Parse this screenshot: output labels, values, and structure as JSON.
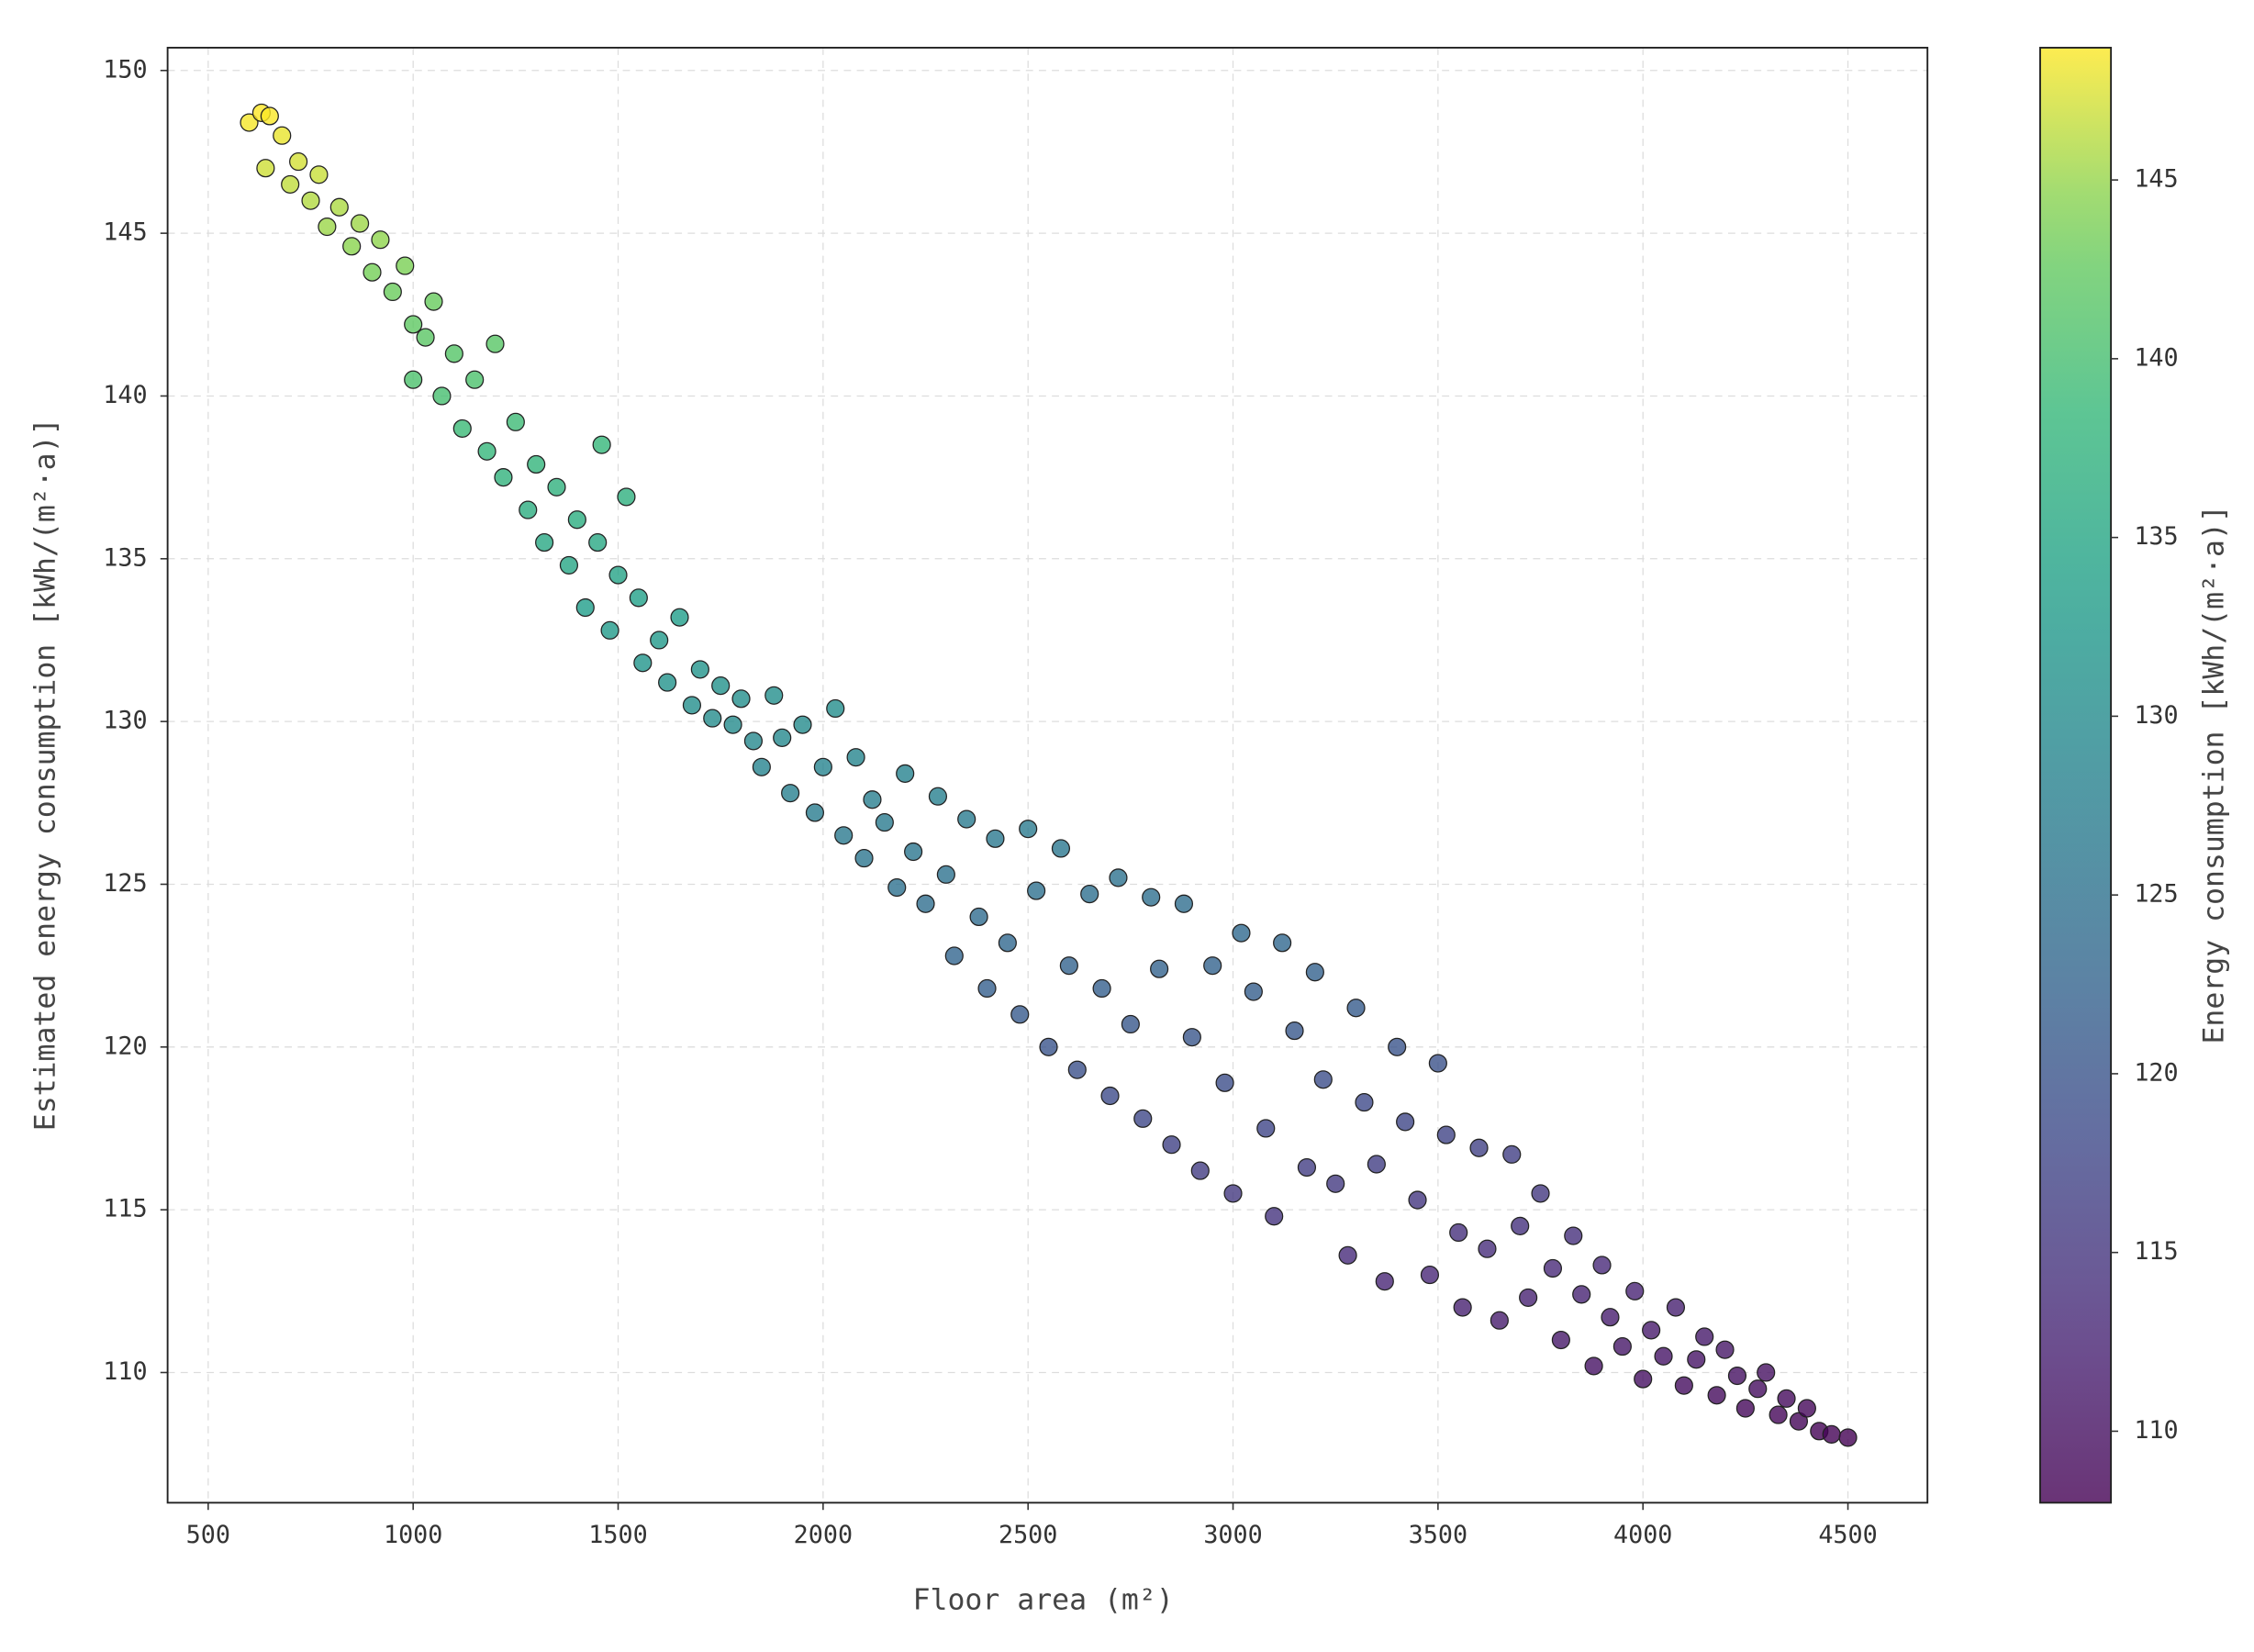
{
  "chart_data": {
    "type": "scatter",
    "xlabel": "Floor area (m²)",
    "ylabel": "Estimated energy consumption [kWh/(m²·a)]",
    "x": [
      600,
      630,
      650,
      640,
      680,
      700,
      720,
      750,
      770,
      790,
      820,
      850,
      870,
      900,
      920,
      950,
      980,
      1000,
      1000,
      1030,
      1050,
      1070,
      1100,
      1120,
      1150,
      1180,
      1200,
      1220,
      1250,
      1280,
      1300,
      1320,
      1350,
      1380,
      1400,
      1420,
      1450,
      1460,
      1480,
      1500,
      1520,
      1550,
      1560,
      1600,
      1620,
      1650,
      1680,
      1700,
      1730,
      1750,
      1780,
      1800,
      1830,
      1850,
      1880,
      1900,
      1920,
      1950,
      1980,
      2000,
      2030,
      2050,
      2080,
      2100,
      2120,
      2150,
      2180,
      2200,
      2220,
      2250,
      2280,
      2300,
      2320,
      2350,
      2380,
      2400,
      2420,
      2450,
      2480,
      2500,
      2520,
      2550,
      2580,
      2600,
      2620,
      2650,
      2680,
      2700,
      2720,
      2750,
      2780,
      2800,
      2820,
      2850,
      2880,
      2900,
      2920,
      2950,
      2980,
      3000,
      3020,
      3050,
      3080,
      3100,
      3120,
      3150,
      3180,
      3200,
      3220,
      3250,
      3280,
      3300,
      3320,
      3350,
      3370,
      3400,
      3420,
      3450,
      3480,
      3500,
      3520,
      3550,
      3560,
      3600,
      3620,
      3650,
      3680,
      3700,
      3720,
      3750,
      3780,
      3800,
      3830,
      3850,
      3880,
      3900,
      3920,
      3950,
      3980,
      4000,
      4020,
      4050,
      4080,
      4100,
      4130,
      4150,
      4180,
      4200,
      4230,
      4250,
      4280,
      4300,
      4330,
      4350,
      4380,
      4400,
      4430,
      4460,
      4500
    ],
    "y": [
      148.4,
      148.7,
      148.6,
      147,
      148,
      146.5,
      147.2,
      146,
      146.8,
      145.2,
      145.8,
      144.6,
      145.3,
      143.8,
      144.8,
      143.2,
      144,
      142.2,
      140.5,
      141.8,
      142.9,
      140,
      141.3,
      139,
      140.5,
      138.3,
      141.6,
      137.5,
      139.2,
      136.5,
      137.9,
      135.5,
      137.2,
      134.8,
      136.2,
      133.5,
      135.5,
      138.5,
      132.8,
      134.5,
      136.9,
      133.8,
      131.8,
      132.5,
      131.2,
      133.2,
      130.5,
      131.6,
      130.1,
      131.1,
      129.9,
      130.7,
      129.4,
      128.6,
      130.8,
      129.5,
      127.8,
      129.9,
      127.2,
      128.6,
      130.4,
      126.5,
      128.9,
      125.8,
      127.6,
      126.9,
      124.9,
      128.4,
      126,
      124.4,
      127.7,
      125.3,
      122.8,
      127,
      124,
      121.8,
      126.4,
      123.2,
      121,
      126.7,
      124.8,
      120,
      126.1,
      122.5,
      119.3,
      124.7,
      121.8,
      118.5,
      125.2,
      120.7,
      117.8,
      124.6,
      122.4,
      117,
      124.4,
      120.3,
      116.2,
      122.5,
      118.9,
      115.5,
      123.5,
      121.7,
      117.5,
      114.8,
      123.2,
      120.5,
      116.3,
      122.3,
      119,
      115.8,
      113.6,
      121.2,
      118.3,
      116.4,
      112.8,
      120,
      117.7,
      115.3,
      113,
      119.5,
      117.3,
      114.3,
      112,
      116.9,
      113.8,
      111.6,
      116.7,
      114.5,
      112.3,
      115.5,
      113.2,
      111,
      114.2,
      112.4,
      110.2,
      113.3,
      111.7,
      110.8,
      112.5,
      109.8,
      111.3,
      110.5,
      112,
      109.6,
      110.4,
      111.1,
      109.3,
      110.7,
      109.9,
      108.9,
      109.5,
      110,
      108.7,
      109.2,
      108.5,
      108.9,
      108.2,
      108.1,
      108
    ],
    "xlim": [
      401,
      4694
    ],
    "ylim": [
      106,
      150.7
    ],
    "xticks": [
      500,
      1000,
      1500,
      2000,
      2500,
      3000,
      3500,
      4000,
      4500
    ],
    "yticks": [
      110,
      115,
      120,
      125,
      130,
      135,
      140,
      145,
      150
    ],
    "grid": true,
    "colormap": "viridis",
    "color_by": "y",
    "alpha": 0.8,
    "marker_edge_color": "#222222",
    "colorbar": {
      "label": "Energy consumption [kWh/(m²·a)]",
      "clim": [
        108,
        148.7
      ],
      "ticks": [
        110,
        115,
        120,
        125,
        130,
        135,
        140,
        145
      ]
    }
  }
}
